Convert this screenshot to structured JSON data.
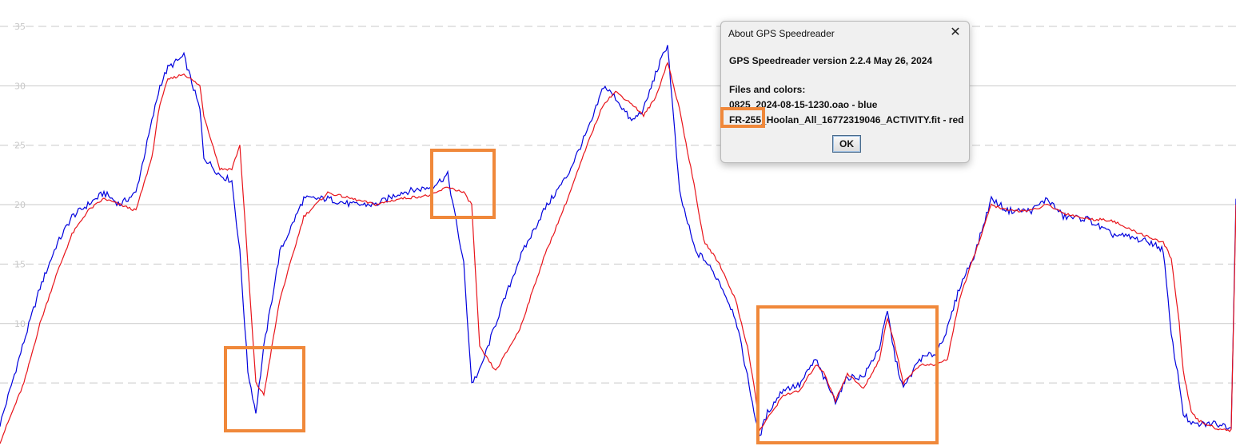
{
  "colors": {
    "blue": "#0000dd",
    "red": "#e8141a",
    "annotation": "#f0883a",
    "grid": "#c9c9c9"
  },
  "chart_data": {
    "type": "line",
    "title": "",
    "xlabel": "",
    "ylabel": "",
    "ylim": [
      0,
      35
    ],
    "y_ticks": [
      35,
      30,
      25,
      20,
      15,
      10,
      5
    ],
    "y_tick_labels": [
      "35",
      "30",
      "25",
      "20",
      "15",
      "10",
      ""
    ],
    "grid": true,
    "x": [
      0,
      30,
      50,
      70,
      90,
      110,
      130,
      150,
      170,
      190,
      200,
      210,
      230,
      250,
      255,
      275,
      290,
      300,
      310,
      320,
      330,
      350,
      380,
      410,
      440,
      470,
      500,
      540,
      560,
      580,
      590,
      600,
      620,
      650,
      680,
      710,
      740,
      755,
      770,
      790,
      805,
      820,
      835,
      850,
      870,
      880,
      900,
      920,
      935,
      945,
      950,
      960,
      980,
      1000,
      1020,
      1030,
      1045,
      1060,
      1080,
      1100,
      1110,
      1120,
      1130,
      1150,
      1170,
      1185,
      1200,
      1220,
      1240,
      1260,
      1290,
      1310,
      1330,
      1360,
      1390,
      1410,
      1440,
      1455,
      1465,
      1475,
      1480,
      1490,
      1500,
      1520,
      1540,
      1546
    ],
    "series": [
      {
        "color": "#0000dd",
        "values": [
          1.5,
          8.5,
          13,
          16.5,
          19,
          20,
          21,
          20,
          21,
          27,
          30,
          31.5,
          32.5,
          28,
          24,
          22.5,
          22,
          16,
          6,
          2.5,
          8,
          16,
          20.5,
          20.5,
          20,
          20,
          21,
          21.5,
          22.5,
          15,
          5,
          6,
          10,
          15.5,
          19.5,
          22.5,
          27,
          30,
          29,
          27,
          28,
          31,
          33.5,
          21,
          16,
          15.5,
          13.5,
          10.5,
          5.5,
          2,
          0.5,
          2.5,
          4.5,
          4.8,
          7,
          5.5,
          3.5,
          5.5,
          5.5,
          8,
          11,
          7,
          4.5,
          7,
          7.5,
          9.5,
          13,
          16,
          20.5,
          19.5,
          19.5,
          20.5,
          19,
          18.8,
          17.5,
          17.3,
          16.8,
          16.2,
          9,
          5,
          2.5,
          1.5,
          1.5,
          1.6,
          1.3,
          20.5
        ]
      },
      {
        "color": "#e8141a",
        "values": [
          0,
          5,
          10,
          14,
          17.5,
          19.5,
          20.5,
          20,
          19.5,
          24,
          28.5,
          30.5,
          31,
          30,
          27.5,
          23,
          23,
          25,
          15,
          5,
          4,
          12,
          19,
          21,
          20.5,
          20,
          20.5,
          20.8,
          21.5,
          21,
          20,
          8,
          6,
          9.5,
          15.5,
          20.5,
          26,
          28.5,
          29.5,
          28.5,
          27.5,
          29,
          32,
          28,
          21,
          17,
          15,
          12,
          8,
          4,
          1,
          2,
          4,
          4.3,
          6.5,
          6,
          3.5,
          5.8,
          4.5,
          7,
          10.5,
          8,
          5,
          6.5,
          6.5,
          7,
          12,
          16,
          20,
          19.5,
          19.5,
          20,
          19.3,
          18.8,
          18.7,
          18,
          17.2,
          16.8,
          15.5,
          10,
          6,
          2.5,
          1.8,
          1.2,
          1,
          20
        ]
      }
    ]
  },
  "dialog": {
    "title": "About GPS Speedreader",
    "close_glyph": "✕",
    "version_line": "GPS Speedreader version 2.2.4 May 26, 2024",
    "files_heading": "Files and colors:",
    "file_blue": "0825_2024-08-15-1230.oao - blue",
    "file_red": "FR-255_Hoolan_All_16772319046_ACTIVITY.fit - red",
    "ok_label": "OK"
  }
}
